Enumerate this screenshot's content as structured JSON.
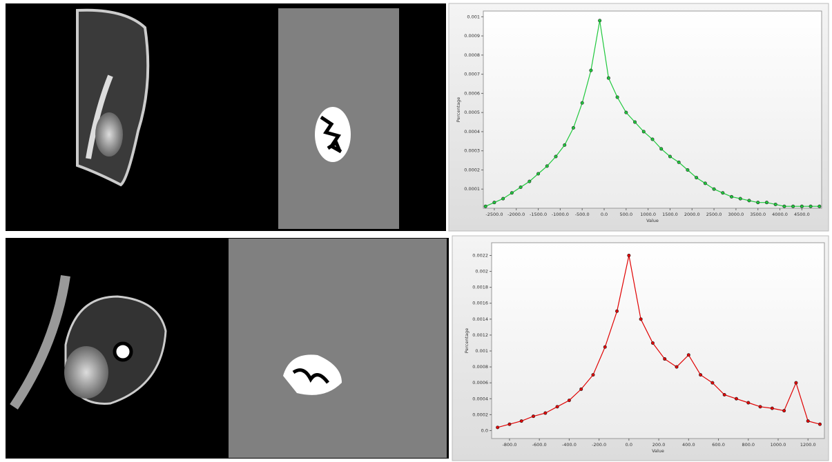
{
  "chart_data": [
    {
      "type": "line",
      "x_label": "Value",
      "y_label": "Percentage",
      "x": [
        -2700,
        -2500,
        -2300,
        -2100,
        -1900,
        -1700,
        -1500,
        -1300,
        -1100,
        -900,
        -700,
        -500,
        -300,
        -100,
        100,
        300,
        500,
        700,
        900,
        1100,
        1300,
        1500,
        1700,
        1900,
        2100,
        2300,
        2500,
        2700,
        2900,
        3100,
        3300,
        3500,
        3700,
        3900,
        4100,
        4300,
        4500,
        4700,
        4900
      ],
      "series": [
        {
          "color": "#1fc83c",
          "values": [
            1e-05,
            3e-05,
            5e-05,
            8e-05,
            0.00011,
            0.00014,
            0.00018,
            0.00022,
            0.00027,
            0.00033,
            0.00042,
            0.00055,
            0.00072,
            0.00098,
            0.00068,
            0.00058,
            0.0005,
            0.00045,
            0.0004,
            0.00036,
            0.00031,
            0.00027,
            0.00024,
            0.0002,
            0.00016,
            0.00013,
            0.0001,
            8e-05,
            6e-05,
            5e-05,
            4e-05,
            3e-05,
            3e-05,
            2e-05,
            1e-05,
            1e-05,
            1e-05,
            1e-05,
            1e-05
          ]
        }
      ],
      "xlim": [
        -2750,
        4950
      ],
      "ylim": [
        0,
        0.00103
      ],
      "xticks": [
        {
          "value": -2500,
          "label": "-2500.0"
        },
        {
          "value": -2000,
          "label": "-2000.0"
        },
        {
          "value": -1500,
          "label": "-1500.0"
        },
        {
          "value": -1000,
          "label": "-1000.0"
        },
        {
          "value": -500,
          "label": "-500.0"
        },
        {
          "value": 0,
          "label": "0.0"
        },
        {
          "value": 500,
          "label": "500.0"
        },
        {
          "value": 1000,
          "label": "1000.0"
        },
        {
          "value": 1500,
          "label": "1500.0"
        },
        {
          "value": 2000,
          "label": "2000.0"
        },
        {
          "value": 2500,
          "label": "2500.0"
        },
        {
          "value": 3000,
          "label": "3000.0"
        },
        {
          "value": 3500,
          "label": "3500.0"
        },
        {
          "value": 4000,
          "label": "4000.0"
        },
        {
          "value": 4500,
          "label": "4500.0"
        }
      ],
      "yticks": [
        0.0001,
        0.0002,
        0.0003,
        0.0004,
        0.0005,
        0.0006,
        0.0007,
        0.0008,
        0.0009,
        0.001
      ]
    },
    {
      "type": "line",
      "x_label": "Value",
      "y_label": "Percentage",
      "x": [
        -880,
        -800,
        -720,
        -640,
        -560,
        -480,
        -400,
        -320,
        -240,
        -160,
        -80,
        0,
        80,
        160,
        240,
        320,
        400,
        480,
        560,
        640,
        720,
        800,
        880,
        960,
        1040,
        1120,
        1200,
        1280
      ],
      "series": [
        {
          "color": "#e00000",
          "values": [
            4e-05,
            8e-05,
            0.00012,
            0.00018,
            0.00022,
            0.0003,
            0.00038,
            0.00052,
            0.0007,
            0.00105,
            0.0015,
            0.0022,
            0.0014,
            0.0011,
            0.0009,
            0.0008,
            0.00095,
            0.0007,
            0.0006,
            0.00045,
            0.0004,
            0.00035,
            0.0003,
            0.00028,
            0.00025,
            0.0006,
            0.00012,
            8e-05
          ]
        }
      ],
      "xlim": [
        -920,
        1310
      ],
      "ylim": [
        -0.0001,
        0.00236
      ],
      "xticks": [
        {
          "value": -800,
          "label": "-800.0"
        },
        {
          "value": -600,
          "label": "-600.0"
        },
        {
          "value": -400,
          "label": "-400.0"
        },
        {
          "value": -200,
          "label": "-200.0"
        },
        {
          "value": 0,
          "label": "0.0"
        },
        {
          "value": 200,
          "label": "200.0"
        },
        {
          "value": 400,
          "label": "400.0"
        },
        {
          "value": 600,
          "label": "600.0"
        },
        {
          "value": 800,
          "label": "800.0"
        },
        {
          "value": 1000,
          "label": "1000.0"
        },
        {
          "value": 1200,
          "label": "1200.0"
        }
      ],
      "yticks": [
        {
          "value": 0,
          "label": "0.0"
        },
        0.0002,
        0.0004,
        0.0006,
        0.0008,
        0.001,
        0.0012,
        0.0014,
        0.0016,
        0.0018,
        0.002,
        0.0022
      ]
    }
  ]
}
